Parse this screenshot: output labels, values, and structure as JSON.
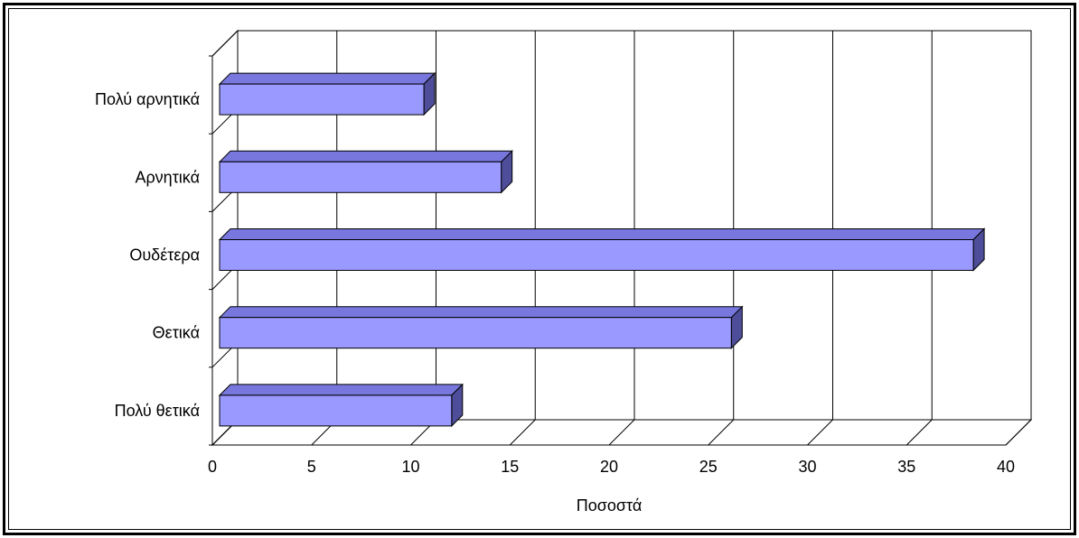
{
  "chart_data": {
    "type": "bar",
    "orientation": "horizontal",
    "three_d": true,
    "categories": [
      "Πολύ αρνητικά",
      "Αρνητικά",
      "Ουδέτερα",
      "Θετικά",
      "Πολύ θετικά"
    ],
    "values": [
      10.3,
      14.2,
      38.0,
      25.8,
      11.7
    ],
    "xlabel": "Ποσοστά",
    "ylabel": "",
    "xlim": [
      0,
      40
    ],
    "xticks": [
      "0",
      "5",
      "10",
      "15",
      "20",
      "25",
      "30",
      "35",
      "40"
    ],
    "grid": true,
    "legend": "none",
    "colors": {
      "bar_front": "#9999ff",
      "bar_top": "#7777dd",
      "bar_side": "#4d4d99",
      "wall": "#ffffff",
      "gridline": "#000000"
    }
  }
}
